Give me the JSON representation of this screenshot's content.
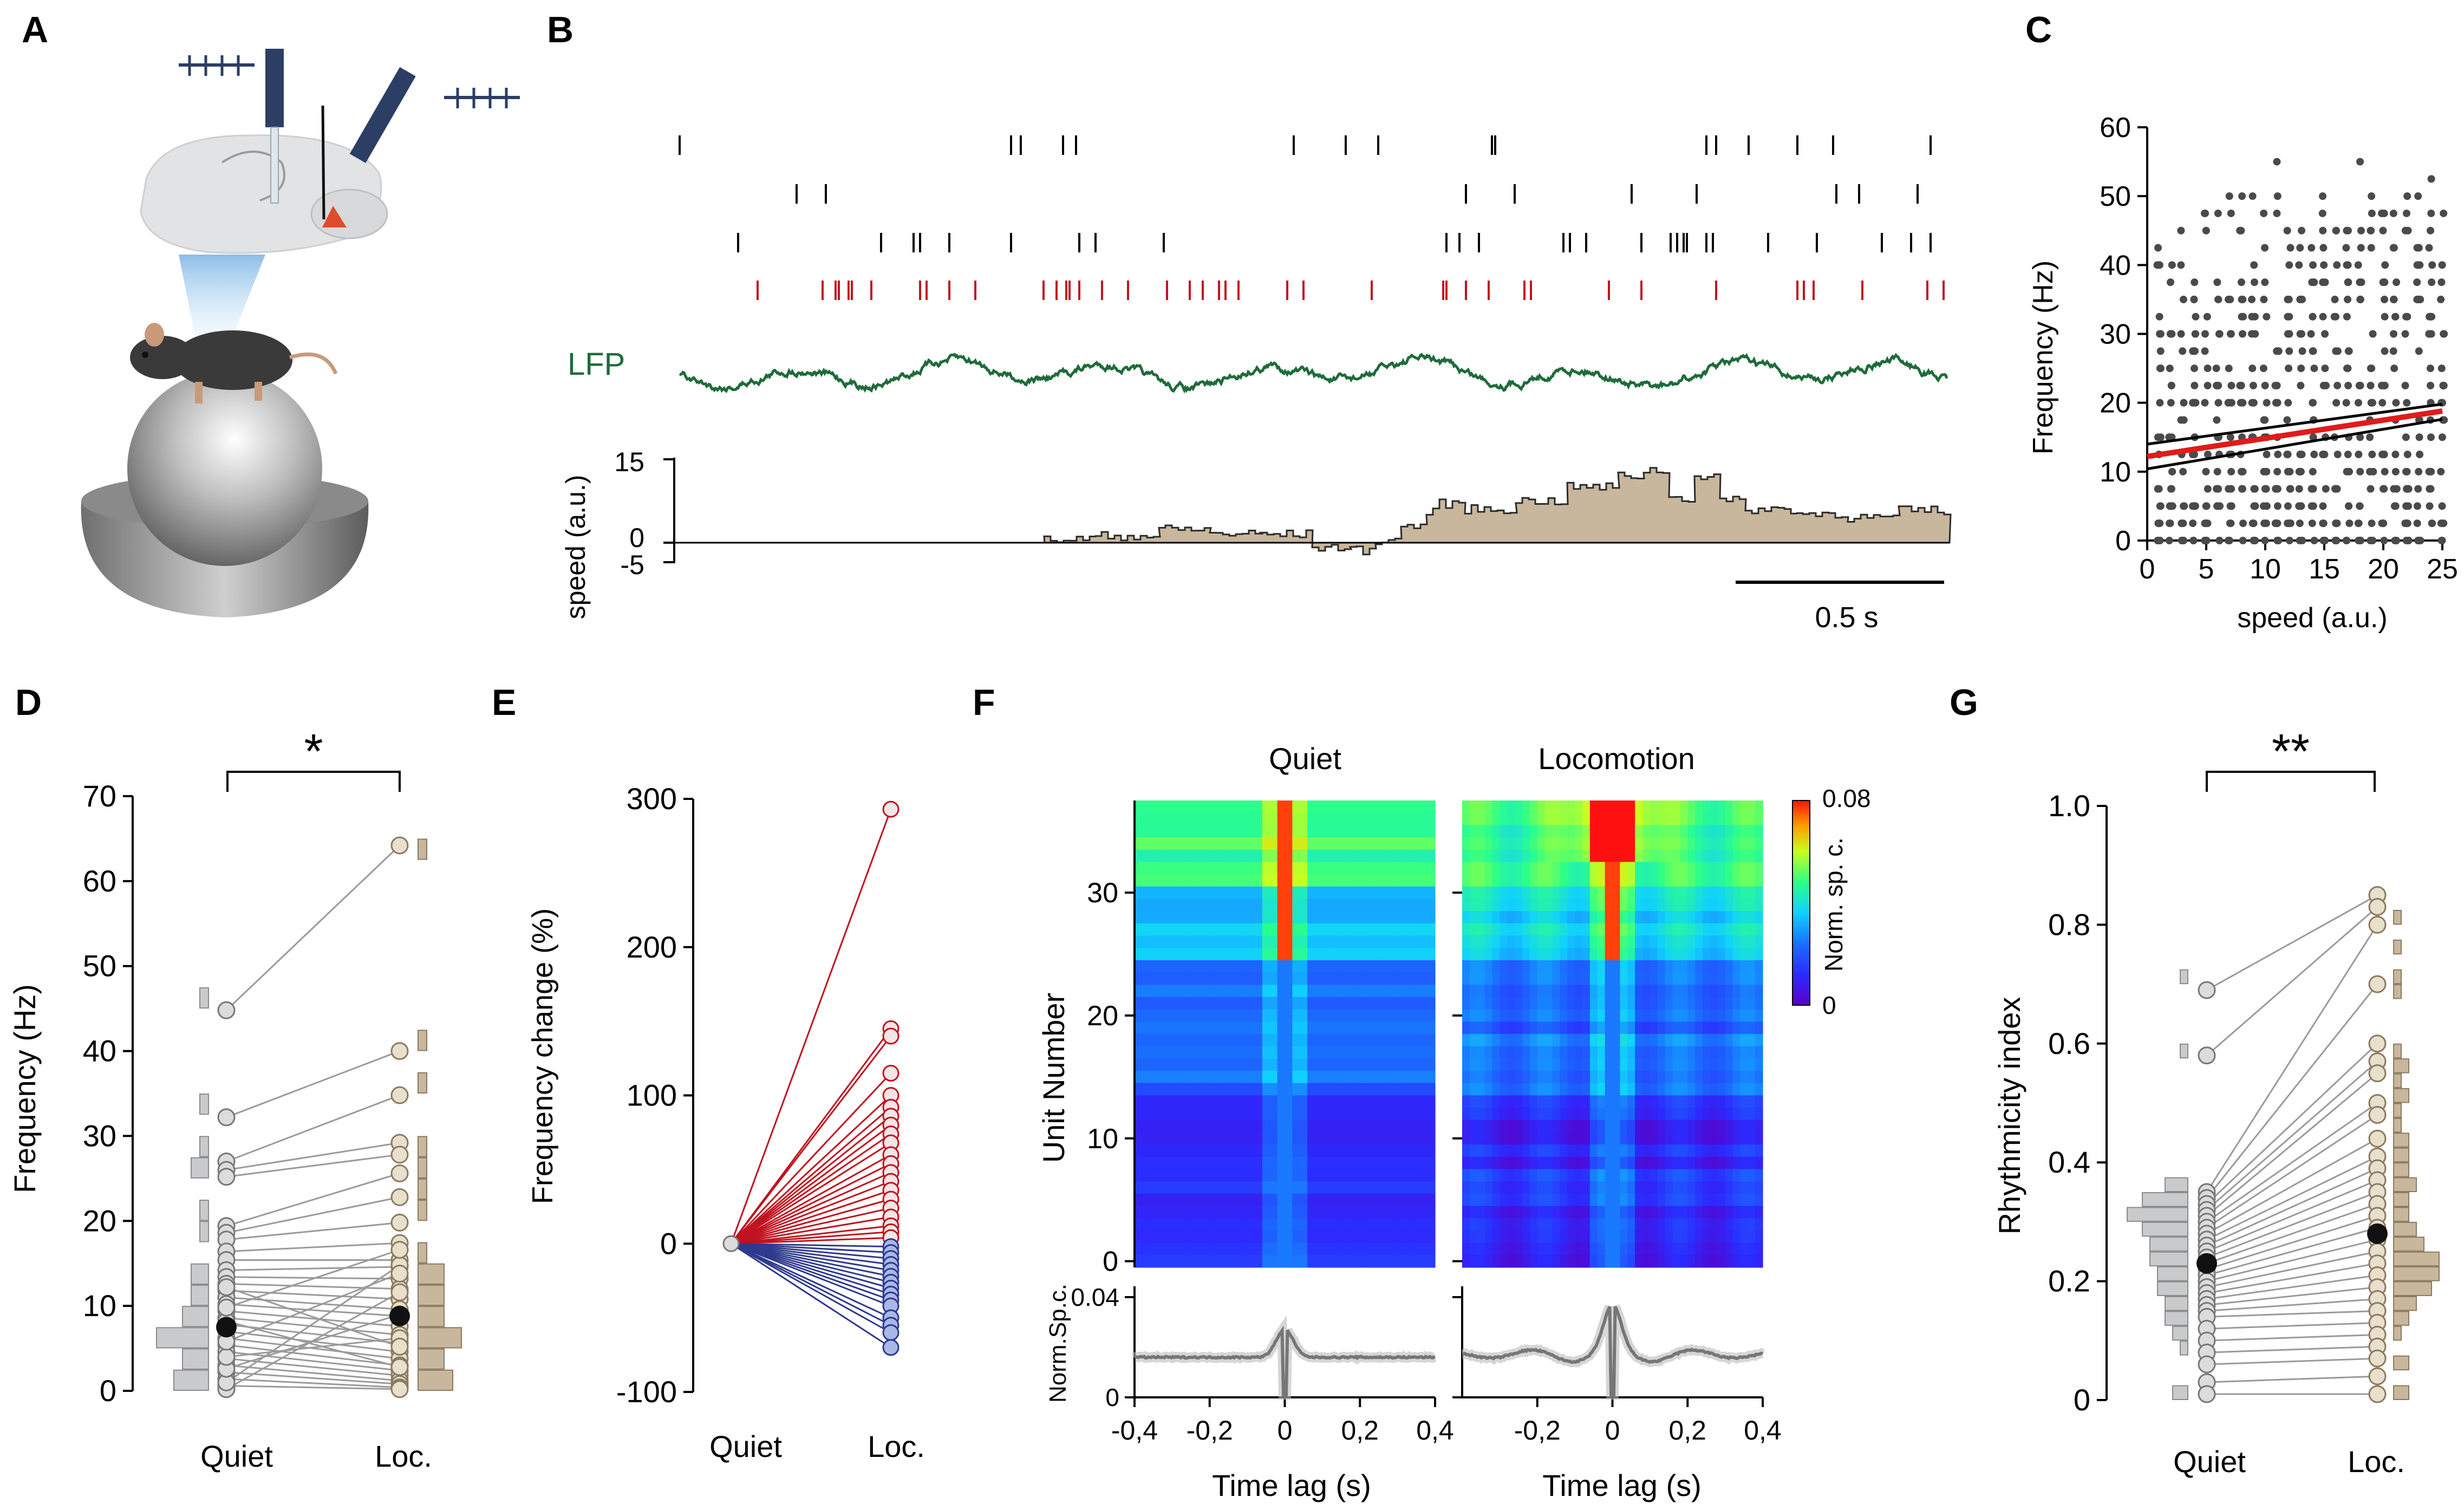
{
  "panel_letters": [
    "A",
    "B",
    "C",
    "D",
    "E",
    "F",
    "G"
  ],
  "colors": {
    "black": "#000000",
    "red": "#c1121f",
    "lfp": "#1e6b3a",
    "tan": "#c8b79d",
    "tan_stroke": "#2b2b2b",
    "grey_bar": "#c9cacc",
    "grey_dot": "#4a4a4a",
    "fit_red": "#e01b1b",
    "line_grey": "#9a9a9a",
    "blue_line": "#2e3a8c",
    "blue_fill": "#a9b8e6"
  },
  "panel_b": {
    "lfp_label": "LFP",
    "speed_label": "speed (a.u.)",
    "speed_ticks": [
      "15",
      "0",
      "-5"
    ],
    "scalebar_label": "0.5 s"
  },
  "chart_data": [
    {
      "panel": "C",
      "type": "scatter",
      "title": "",
      "xlabel": "speed (a.u.)",
      "ylabel": "Frequency  (Hz)",
      "xlim": [
        0,
        25
      ],
      "ylim": [
        0,
        60
      ],
      "xticks": [
        "0",
        "5",
        "10",
        "15",
        "20",
        "25"
      ],
      "yticks": [
        "0",
        "10",
        "20",
        "30",
        "40",
        "50",
        "60"
      ],
      "fits": [
        {
          "name": "regression",
          "color": "red",
          "x": [
            0,
            25
          ],
          "y": [
            12.2,
            18.8
          ]
        },
        {
          "name": "ci_upper",
          "color": "black",
          "x": [
            0,
            25
          ],
          "y": [
            14.0,
            19.8
          ]
        },
        {
          "name": "ci_lower",
          "color": "black",
          "x": [
            0,
            25
          ],
          "y": [
            10.4,
            17.6
          ]
        }
      ]
    },
    {
      "panel": "D",
      "type": "line",
      "title": "",
      "ylabel": "Frequency (Hz)",
      "categories": [
        "Quiet",
        "Loc."
      ],
      "ylim": [
        0,
        70
      ],
      "yticks": [
        "0",
        "10",
        "20",
        "30",
        "40",
        "50",
        "60",
        "70"
      ],
      "significance": "*",
      "medians": {
        "quiet": 7.5,
        "loc": 8.8
      },
      "pairs": [
        [
          44.8,
          64.2
        ],
        [
          32.2,
          40.0
        ],
        [
          27.0,
          34.8
        ],
        [
          26.0,
          29.2
        ],
        [
          25.2,
          27.8
        ],
        [
          19.4,
          25.6
        ],
        [
          18.6,
          22.8
        ],
        [
          17.8,
          19.8
        ],
        [
          16.4,
          17.4
        ],
        [
          15.4,
          15.4
        ],
        [
          14.2,
          14.6
        ],
        [
          13.4,
          13.2
        ],
        [
          12.6,
          12.0
        ],
        [
          11.8,
          10.8
        ],
        [
          11.0,
          9.6
        ],
        [
          10.2,
          8.8
        ],
        [
          9.4,
          7.6
        ],
        [
          8.6,
          6.6
        ],
        [
          7.8,
          5.6
        ],
        [
          7.0,
          4.6
        ],
        [
          6.2,
          3.8
        ],
        [
          5.4,
          3.0
        ],
        [
          4.6,
          2.4
        ],
        [
          3.8,
          1.8
        ],
        [
          3.0,
          1.2
        ],
        [
          2.2,
          0.8
        ],
        [
          1.4,
          0.4
        ],
        [
          0.6,
          0.2
        ],
        [
          0.2,
          11.6
        ],
        [
          1.0,
          14.8
        ],
        [
          2.6,
          9.0
        ],
        [
          4.0,
          6.2
        ],
        [
          5.8,
          13.8
        ],
        [
          8.2,
          2.8
        ],
        [
          9.8,
          16.6
        ],
        [
          12.2,
          5.2
        ]
      ],
      "hist_bins": [
        0,
        2.5,
        5,
        7.5,
        10,
        12.5,
        15,
        17.5,
        20,
        22.5,
        25,
        27.5,
        30,
        32.5,
        35,
        37.5,
        40,
        42.5,
        45,
        47.5,
        50,
        52.5,
        55,
        57.5,
        60,
        62.5,
        65
      ],
      "hist_quiet": [
        4,
        3,
        6,
        3,
        2,
        2,
        0,
        1,
        1,
        0,
        2,
        1,
        0,
        1,
        0,
        0,
        0,
        0,
        1,
        0,
        0,
        0,
        0,
        0,
        0,
        0
      ],
      "hist_loc": [
        4,
        3,
        5,
        3,
        3,
        3,
        1,
        0,
        1,
        1,
        1,
        1,
        0,
        0,
        1,
        0,
        1,
        0,
        0,
        0,
        0,
        0,
        0,
        0,
        0,
        1
      ]
    },
    {
      "panel": "E",
      "type": "line",
      "title": "",
      "ylabel": "Frequency change (%)",
      "categories": [
        "Quiet",
        "Loc."
      ],
      "ylim": [
        -100,
        300
      ],
      "yticks": [
        "-100",
        "0",
        "100",
        "200",
        "300"
      ],
      "increase": [
        293,
        145,
        140,
        115,
        100,
        92,
        86,
        80,
        74,
        68,
        60,
        54,
        48,
        42,
        36,
        30,
        24,
        18,
        12,
        8,
        4
      ],
      "decrease": [
        -2,
        -6,
        -10,
        -14,
        -18,
        -22,
        -26,
        -30,
        -34,
        -38,
        -42,
        -50,
        -55,
        -60,
        -70
      ]
    },
    {
      "panel": "F",
      "type": "heatmap",
      "titles": [
        "Quiet",
        "Locomotion"
      ],
      "ylabel": "Unit Number",
      "xlabel": "Time lag (s)",
      "yticks": [
        "0",
        "10",
        "20",
        "30"
      ],
      "xticks_left": [
        "-0,4",
        "-0,2",
        "0",
        "0,2",
        "0,4"
      ],
      "xticks_right": [
        "-0,2",
        "0",
        "0,2",
        "0,4"
      ],
      "colorbar_max": "0.08",
      "colorbar_min": "0",
      "colorbar_label": "Norm. sp. c.",
      "lower_ylabel": "Norm.Sp.c.",
      "lower_yticks": [
        "0",
        "0.04"
      ],
      "units": 38
    },
    {
      "panel": "G",
      "type": "line",
      "title": "",
      "ylabel": "Rhythmicity index",
      "categories": [
        "Quiet",
        "Loc."
      ],
      "ylim": [
        0,
        1.0
      ],
      "yticks": [
        "0",
        "0.2",
        "0.4",
        "0.6",
        "0.8",
        "1.0"
      ],
      "significance": "**",
      "medians": {
        "quiet": 0.23,
        "loc": 0.28
      },
      "pairs": [
        [
          0.69,
          0.85
        ],
        [
          0.58,
          0.83
        ],
        [
          0.35,
          0.8
        ],
        [
          0.34,
          0.7
        ],
        [
          0.33,
          0.6
        ],
        [
          0.32,
          0.57
        ],
        [
          0.31,
          0.55
        ],
        [
          0.3,
          0.5
        ],
        [
          0.29,
          0.48
        ],
        [
          0.28,
          0.44
        ],
        [
          0.27,
          0.41
        ],
        [
          0.26,
          0.39
        ],
        [
          0.25,
          0.37
        ],
        [
          0.24,
          0.35
        ],
        [
          0.23,
          0.33
        ],
        [
          0.22,
          0.31
        ],
        [
          0.21,
          0.29
        ],
        [
          0.2,
          0.27
        ],
        [
          0.19,
          0.25
        ],
        [
          0.18,
          0.23
        ],
        [
          0.17,
          0.21
        ],
        [
          0.16,
          0.19
        ],
        [
          0.15,
          0.17
        ],
        [
          0.14,
          0.15
        ],
        [
          0.12,
          0.13
        ],
        [
          0.1,
          0.11
        ],
        [
          0.08,
          0.09
        ],
        [
          0.06,
          0.07
        ],
        [
          0.03,
          0.04
        ],
        [
          0.01,
          0.01
        ]
      ],
      "hist_bins": [
        0,
        0.025,
        0.05,
        0.075,
        0.1,
        0.125,
        0.15,
        0.175,
        0.2,
        0.225,
        0.25,
        0.275,
        0.3,
        0.325,
        0.35,
        0.375,
        0.4,
        0.425,
        0.45,
        0.475,
        0.5,
        0.525,
        0.55,
        0.575,
        0.6,
        0.625,
        0.65,
        0.675,
        0.7,
        0.725,
        0.75,
        0.775,
        0.8,
        0.825,
        0.85
      ],
      "hist_quiet": [
        2,
        0,
        0,
        1,
        2,
        3,
        3,
        4,
        4,
        5,
        5,
        6,
        8,
        6,
        3,
        0,
        0,
        0,
        0,
        0,
        0,
        0,
        0,
        1,
        0,
        0,
        0,
        0,
        1,
        0,
        0,
        0,
        0,
        0
      ],
      "hist_loc": [
        2,
        0,
        2,
        0,
        1,
        2,
        3,
        5,
        6,
        6,
        4,
        3,
        2,
        2,
        3,
        2,
        2,
        2,
        1,
        1,
        2,
        1,
        2,
        1,
        0,
        0,
        0,
        1,
        1,
        0,
        1,
        0,
        1,
        0
      ]
    }
  ]
}
